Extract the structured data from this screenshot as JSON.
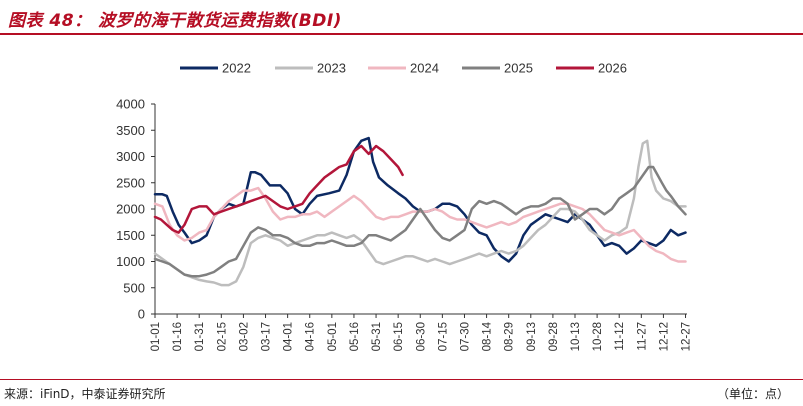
{
  "figure": {
    "title": "图表 48：  波罗的海干散货运费指数(BDI)",
    "source": "来源：iFinD，中泰证券研究所",
    "unit": "（单位：点）"
  },
  "chart_data": {
    "type": "line",
    "title": "波罗的海干散货运费指数(BDI)",
    "xlabel": "",
    "ylabel": "",
    "ylim": [
      0,
      4000
    ],
    "yticks": [
      0,
      500,
      1000,
      1500,
      2000,
      2500,
      3000,
      3500,
      4000
    ],
    "xlim": [
      0,
      361
    ],
    "x_tick_labels": [
      "01-01",
      "01-16",
      "01-31",
      "02-15",
      "03-02",
      "03-17",
      "04-01",
      "04-16",
      "05-01",
      "05-16",
      "05-31",
      "06-15",
      "06-30",
      "07-15",
      "07-30",
      "08-14",
      "08-29",
      "09-13",
      "09-28",
      "10-13",
      "10-28",
      "11-12",
      "11-27",
      "12-12",
      "12-27"
    ],
    "x_tick_positions": [
      0,
      15,
      30,
      45,
      60,
      75,
      90,
      105,
      120,
      135,
      150,
      165,
      180,
      195,
      210,
      225,
      240,
      255,
      270,
      285,
      300,
      315,
      330,
      345,
      360
    ],
    "legend_position": "top",
    "grid": false,
    "series": [
      {
        "name": "2022",
        "color": "#0d2a63",
        "x": [
          0,
          5,
          8,
          12,
          16,
          20,
          25,
          30,
          35,
          40,
          45,
          50,
          55,
          60,
          65,
          68,
          72,
          78,
          85,
          90,
          95,
          100,
          105,
          110,
          118,
          125,
          130,
          135,
          140,
          145,
          148,
          152,
          158,
          165,
          170,
          175,
          180,
          185,
          190,
          195,
          200,
          205,
          210,
          215,
          220,
          225,
          230,
          235,
          240,
          245,
          250,
          255,
          260,
          265,
          270,
          275,
          280,
          285,
          290,
          295,
          300,
          305,
          310,
          315,
          320,
          325,
          330,
          335,
          340,
          345,
          350,
          355,
          360
        ],
        "y": [
          2280,
          2280,
          2250,
          1950,
          1700,
          1550,
          1350,
          1400,
          1500,
          1850,
          2000,
          2100,
          2050,
          2100,
          2700,
          2700,
          2650,
          2450,
          2450,
          2300,
          2000,
          1900,
          2100,
          2250,
          2300,
          2350,
          2650,
          3100,
          3300,
          3350,
          2900,
          2600,
          2450,
          2300,
          2200,
          2050,
          1950,
          1950,
          2000,
          2100,
          2100,
          2050,
          1900,
          1700,
          1550,
          1500,
          1250,
          1100,
          1000,
          1150,
          1500,
          1700,
          1800,
          1900,
          1850,
          1800,
          1750,
          1900,
          1800,
          1700,
          1500,
          1300,
          1350,
          1300,
          1150,
          1250,
          1400,
          1350,
          1300,
          1400,
          1600,
          1500,
          1550
        ]
      },
      {
        "name": "2023",
        "color": "#bdbdbd",
        "x": [
          0,
          5,
          10,
          15,
          20,
          25,
          30,
          35,
          40,
          45,
          50,
          55,
          60,
          65,
          70,
          75,
          80,
          85,
          90,
          95,
          100,
          105,
          110,
          115,
          120,
          125,
          130,
          135,
          140,
          145,
          150,
          155,
          160,
          165,
          170,
          175,
          180,
          185,
          190,
          195,
          200,
          205,
          210,
          215,
          220,
          225,
          230,
          235,
          240,
          245,
          250,
          255,
          260,
          265,
          270,
          275,
          280,
          285,
          290,
          295,
          300,
          305,
          310,
          315,
          320,
          325,
          328,
          331,
          334,
          337,
          340,
          345,
          350,
          355,
          360
        ],
        "y": [
          1150,
          1050,
          950,
          850,
          750,
          700,
          650,
          620,
          600,
          550,
          550,
          620,
          900,
          1350,
          1450,
          1500,
          1450,
          1400,
          1300,
          1350,
          1400,
          1450,
          1500,
          1500,
          1550,
          1500,
          1450,
          1500,
          1400,
          1200,
          1000,
          950,
          1000,
          1050,
          1100,
          1100,
          1050,
          1000,
          1050,
          1000,
          950,
          1000,
          1050,
          1100,
          1150,
          1100,
          1150,
          1200,
          1150,
          1200,
          1300,
          1450,
          1600,
          1700,
          1850,
          2000,
          2000,
          1950,
          1800,
          1600,
          1500,
          1400,
          1500,
          1550,
          1650,
          2200,
          2800,
          3250,
          3300,
          2600,
          2350,
          2200,
          2150,
          2050,
          2050
        ]
      },
      {
        "name": "2024",
        "color": "#f0b7c0",
        "x": [
          0,
          5,
          10,
          15,
          20,
          25,
          30,
          35,
          40,
          45,
          50,
          55,
          60,
          65,
          70,
          75,
          80,
          85,
          90,
          95,
          100,
          105,
          110,
          115,
          120,
          125,
          130,
          135,
          140,
          145,
          150,
          155,
          160,
          165,
          170,
          175,
          180,
          185,
          190,
          195,
          200,
          205,
          210,
          215,
          220,
          225,
          230,
          235,
          240,
          245,
          250,
          255,
          260,
          265,
          270,
          275,
          280,
          285,
          290,
          295,
          300,
          305,
          310,
          315,
          320,
          325,
          330,
          335,
          340,
          345,
          350,
          355,
          360
        ],
        "y": [
          2100,
          2050,
          1700,
          1500,
          1400,
          1450,
          1550,
          1600,
          1850,
          2000,
          2150,
          2250,
          2350,
          2350,
          2400,
          2200,
          1950,
          1800,
          1850,
          1850,
          1900,
          1900,
          1950,
          1850,
          1950,
          2050,
          2150,
          2250,
          2150,
          2000,
          1850,
          1800,
          1850,
          1850,
          1900,
          1950,
          1950,
          1950,
          2000,
          1950,
          1850,
          1800,
          1800,
          1750,
          1700,
          1650,
          1700,
          1750,
          1700,
          1750,
          1850,
          1900,
          1950,
          2000,
          2050,
          2100,
          2100,
          2050,
          2000,
          1900,
          1750,
          1600,
          1550,
          1500,
          1550,
          1600,
          1450,
          1300,
          1200,
          1150,
          1050,
          1000,
          1000
        ]
      },
      {
        "name": "2025",
        "color": "#808080",
        "x": [
          0,
          5,
          10,
          15,
          20,
          25,
          30,
          35,
          40,
          45,
          50,
          55,
          60,
          65,
          70,
          75,
          80,
          85,
          90,
          95,
          100,
          105,
          110,
          115,
          120,
          125,
          130,
          135,
          140,
          145,
          150,
          155,
          160,
          165,
          170,
          175,
          180,
          185,
          190,
          195,
          200,
          205,
          210,
          215,
          220,
          225,
          230,
          235,
          240,
          245,
          250,
          255,
          260,
          265,
          270,
          275,
          280,
          285,
          290,
          295,
          300,
          305,
          310,
          315,
          320,
          325,
          330,
          335,
          338,
          341,
          344,
          347,
          350,
          355,
          360
        ],
        "y": [
          1050,
          1000,
          950,
          850,
          750,
          720,
          720,
          750,
          800,
          900,
          1000,
          1050,
          1300,
          1550,
          1650,
          1600,
          1500,
          1500,
          1450,
          1350,
          1300,
          1300,
          1350,
          1350,
          1400,
          1350,
          1300,
          1300,
          1350,
          1500,
          1500,
          1450,
          1400,
          1500,
          1600,
          1800,
          2000,
          1800,
          1600,
          1450,
          1400,
          1500,
          1600,
          2000,
          2150,
          2100,
          2150,
          2100,
          2000,
          1900,
          2000,
          2050,
          2050,
          2100,
          2200,
          2200,
          2100,
          1800,
          1900,
          2000,
          2000,
          1900,
          2000,
          2200,
          2300,
          2400,
          2600,
          2800,
          2800,
          2650,
          2500,
          2350,
          2250,
          2050,
          1900
        ]
      },
      {
        "name": "2026",
        "color": "#b3163a",
        "x": [
          0,
          4,
          8,
          12,
          16,
          20,
          25,
          30,
          35,
          40,
          45,
          50,
          55,
          60,
          65,
          70,
          75,
          80,
          85,
          90,
          95,
          100,
          105,
          110,
          115,
          120,
          125,
          130,
          135,
          140,
          145,
          150,
          155,
          160,
          165,
          168
        ],
        "y": [
          1850,
          1800,
          1700,
          1600,
          1550,
          1700,
          2000,
          2050,
          2050,
          1900,
          1950,
          2000,
          2050,
          2100,
          2150,
          2200,
          2250,
          2150,
          2050,
          2000,
          2050,
          2100,
          2300,
          2450,
          2600,
          2700,
          2800,
          2850,
          3100,
          3200,
          3050,
          3200,
          3100,
          2950,
          2800,
          2650
        ]
      }
    ]
  }
}
